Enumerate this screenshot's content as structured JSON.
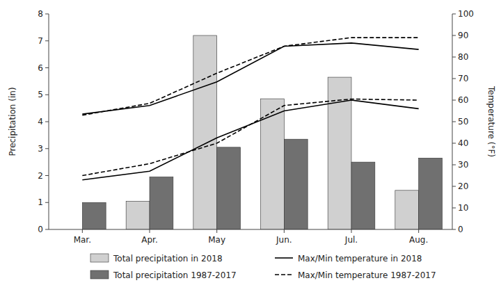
{
  "chart_data": {
    "type": "bar",
    "categories": [
      "Mar.",
      "Apr.",
      "May",
      "Jun.",
      "Jul.",
      "Aug."
    ],
    "y_label": "Precipitation (in)",
    "y2_label": "Temperature (°F)",
    "ylim": [
      0,
      8
    ],
    "yticks": [
      0,
      1,
      2,
      3,
      4,
      5,
      6,
      7,
      8
    ],
    "y2lim": [
      0,
      100
    ],
    "y2ticks": [
      0,
      10,
      20,
      30,
      40,
      50,
      60,
      70,
      80,
      90,
      100
    ],
    "grid": false,
    "legend": "bottom",
    "series": [
      {
        "name": "Total precipitation in 2018",
        "type": "bar",
        "color": "#d0d0d0",
        "values": [
          0.0,
          1.05,
          7.2,
          4.85,
          5.65,
          1.45
        ]
      },
      {
        "name": "Total precipitation 1987-2017",
        "type": "bar",
        "color": "#707070",
        "values": [
          1.0,
          1.95,
          3.05,
          3.35,
          2.5,
          2.65
        ]
      },
      {
        "name": "Max/Min temperature in 2018",
        "type": "line",
        "axis": "y2",
        "color": "#000000",
        "line_style": "solid",
        "values": [
          53.5,
          57.5,
          68.5,
          85.0,
          86.5,
          83.5
        ]
      },
      {
        "name": "Max/Min temperature in 2018",
        "type": "line",
        "axis": "y2",
        "color": "#000000",
        "line_style": "solid",
        "values": [
          23.0,
          27.0,
          42.5,
          55.0,
          60.0,
          56.0
        ]
      },
      {
        "name": "Max/Min temperature 1987-2017",
        "type": "line",
        "axis": "y2",
        "color": "#000000",
        "line_style": "dashed",
        "values": [
          53.0,
          58.5,
          72.5,
          85.0,
          89.0,
          89.0
        ]
      },
      {
        "name": "Max/Min temperature 1987-2017",
        "type": "line",
        "axis": "y2",
        "color": "#000000",
        "line_style": "dashed",
        "values": [
          25.0,
          30.5,
          40.0,
          57.5,
          60.5,
          60.0
        ]
      }
    ]
  }
}
